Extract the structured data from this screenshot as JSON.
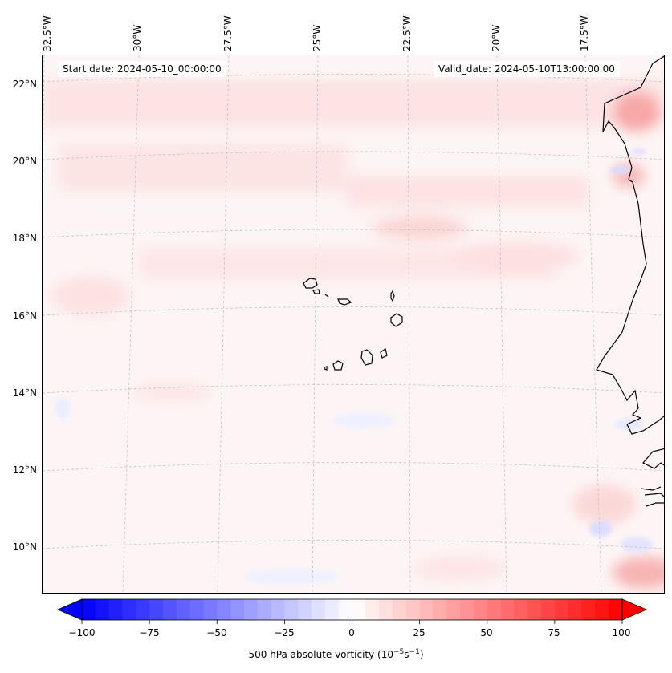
{
  "header": {
    "start_date": "Start date: 2024-05-10_00:00:00",
    "valid_date": "Valid_date: 2024-05-10T13:00:00.00"
  },
  "map": {
    "longitude_labels": [
      "32.5°W",
      "30°W",
      "27.5°W",
      "25°W",
      "22.5°W",
      "20°W",
      "17.5°W"
    ],
    "latitude_labels": [
      "22°N",
      "20°N",
      "18°N",
      "16°N",
      "14°N",
      "12°N",
      "10°N"
    ],
    "gridlines": "dashed",
    "coastline_color": "#000000",
    "field": "500 hPa absolute vorticity"
  },
  "colorbar": {
    "ticks": [
      "−100",
      "−75",
      "−50",
      "−25",
      "0",
      "25",
      "50",
      "75",
      "100"
    ],
    "min": -100,
    "max": 100,
    "colormap": "bwr",
    "low_color": "#0000ff",
    "mid_color": "#ffffff",
    "high_color": "#ff0000",
    "extend": "both",
    "label_main": "500 hPa absolute vorticity (10",
    "label_exp1": "−5",
    "label_mid": "s",
    "label_exp2": "−1",
    "label_end": ")"
  }
}
